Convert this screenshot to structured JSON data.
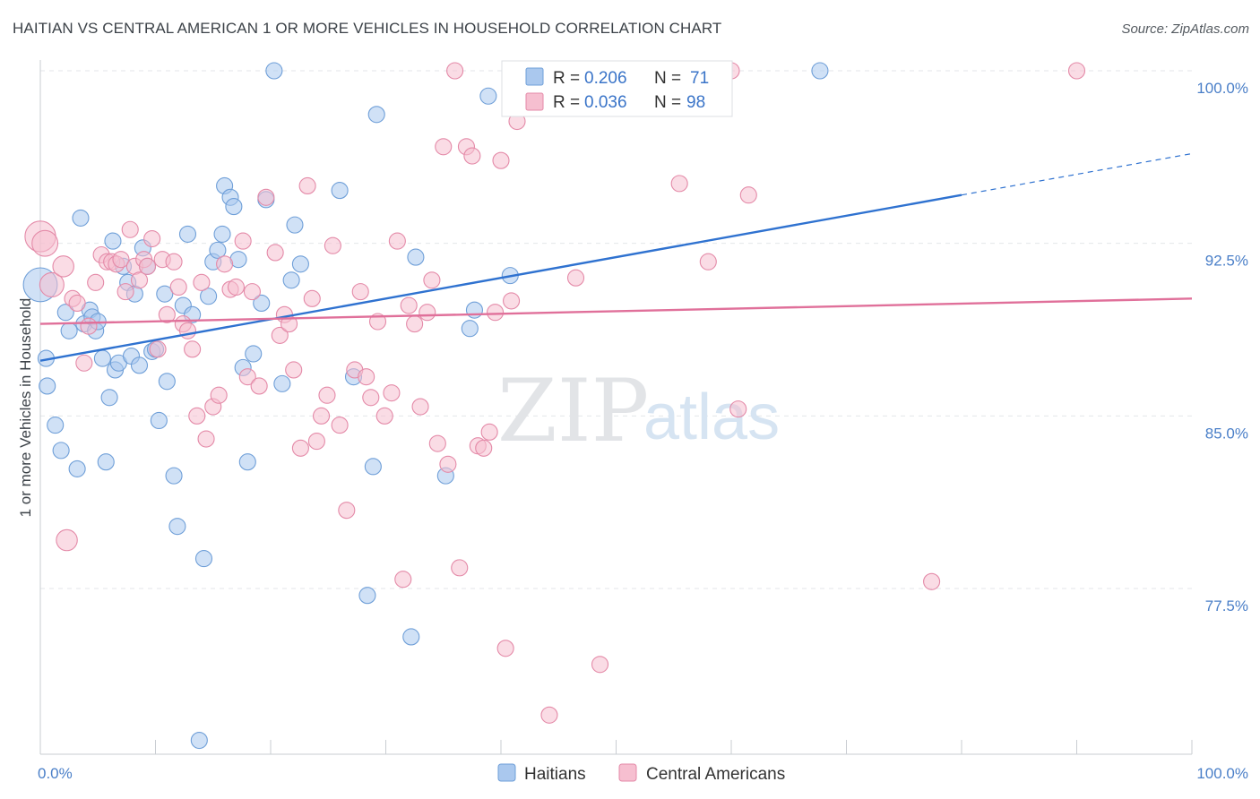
{
  "title": "HAITIAN VS CENTRAL AMERICAN 1 OR MORE VEHICLES IN HOUSEHOLD CORRELATION CHART",
  "source": "Source: ZipAtlas.com",
  "watermark": {
    "zip": "ZIP",
    "atlas": "atlas"
  },
  "colors": {
    "blue_fill": "#aac8ee",
    "blue_stroke": "#6f9fd8",
    "blue_line": "#2f72d0",
    "pink_fill": "#f6bfd0",
    "pink_stroke": "#e48aa8",
    "pink_line": "#e0709a",
    "grid": "#e3e6ea",
    "axis_text": "#4a7fc8"
  },
  "legend": {
    "rows": [
      {
        "r_label": "R =",
        "r_value": "0.206",
        "n_label": "N =",
        "n_value": "71",
        "series": "haitians"
      },
      {
        "r_label": "R =",
        "r_value": "0.036",
        "n_label": "N =",
        "n_value": "98",
        "series": "central_americans"
      }
    ]
  },
  "chart_data": {
    "type": "scatter",
    "title": "HAITIAN VS CENTRAL AMERICAN 1 OR MORE VEHICLES IN HOUSEHOLD CORRELATION CHART",
    "xlabel": "",
    "ylabel": "1 or more Vehicles in Household",
    "xlim": [
      0,
      100
    ],
    "ylim": [
      71.0,
      100.8
    ],
    "x_tick_labels": [
      "0.0%",
      "100.0%"
    ],
    "y_ticks": [
      100.0,
      92.5,
      85.0,
      77.5
    ],
    "y_tick_labels": [
      "100.0%",
      "92.5%",
      "85.0%",
      "77.5%"
    ],
    "grid": true,
    "legend_position": "top-center",
    "series": [
      {
        "name": "Haitians",
        "key": "haitians",
        "trend": {
          "x": [
            0,
            80
          ],
          "y": [
            87.4,
            94.6
          ],
          "dashed_to": [
            100,
            96.4
          ]
        },
        "points": [
          [
            0.0,
            90.7,
            2.1
          ],
          [
            0.5,
            87.5,
            1
          ],
          [
            0.6,
            86.3,
            1
          ],
          [
            1.3,
            84.6,
            1
          ],
          [
            1.8,
            83.5,
            1
          ],
          [
            2.2,
            89.5,
            1
          ],
          [
            2.5,
            88.7,
            1
          ],
          [
            3.2,
            82.7,
            1
          ],
          [
            3.5,
            93.6,
            1
          ],
          [
            3.8,
            89.0,
            1
          ],
          [
            4.3,
            89.6,
            1
          ],
          [
            4.5,
            89.3,
            1
          ],
          [
            4.8,
            88.7,
            1
          ],
          [
            5.0,
            89.1,
            1
          ],
          [
            5.4,
            87.5,
            1
          ],
          [
            5.7,
            83.0,
            1
          ],
          [
            6.0,
            85.8,
            1
          ],
          [
            6.3,
            92.6,
            1
          ],
          [
            6.5,
            87.0,
            1
          ],
          [
            6.8,
            87.3,
            1
          ],
          [
            7.2,
            91.5,
            1
          ],
          [
            7.6,
            90.8,
            1
          ],
          [
            7.9,
            87.6,
            1
          ],
          [
            8.2,
            90.3,
            1
          ],
          [
            8.6,
            87.2,
            1
          ],
          [
            8.9,
            92.3,
            1
          ],
          [
            9.3,
            91.5,
            1
          ],
          [
            9.7,
            87.8,
            1
          ],
          [
            10.0,
            87.9,
            1
          ],
          [
            10.3,
            84.8,
            1
          ],
          [
            10.8,
            90.3,
            1
          ],
          [
            11.0,
            86.5,
            1
          ],
          [
            11.6,
            82.4,
            1
          ],
          [
            11.9,
            80.2,
            1
          ],
          [
            12.4,
            89.8,
            1
          ],
          [
            12.8,
            92.9,
            1
          ],
          [
            13.2,
            89.4,
            1
          ],
          [
            13.8,
            70.9,
            1
          ],
          [
            14.2,
            78.8,
            1
          ],
          [
            14.6,
            90.2,
            1
          ],
          [
            15.0,
            91.7,
            1
          ],
          [
            15.4,
            92.2,
            1
          ],
          [
            15.8,
            92.9,
            1
          ],
          [
            16.0,
            95.0,
            1
          ],
          [
            16.5,
            94.5,
            1
          ],
          [
            16.8,
            94.1,
            1
          ],
          [
            17.2,
            91.8,
            1
          ],
          [
            17.6,
            87.1,
            1
          ],
          [
            18.0,
            83.0,
            1
          ],
          [
            18.5,
            87.7,
            1
          ],
          [
            19.2,
            89.9,
            1
          ],
          [
            19.6,
            94.4,
            1
          ],
          [
            20.3,
            100.0,
            1
          ],
          [
            21.0,
            86.4,
            1
          ],
          [
            21.8,
            90.9,
            1
          ],
          [
            22.1,
            93.3,
            1
          ],
          [
            22.6,
            91.6,
            1
          ],
          [
            26.0,
            94.8,
            1
          ],
          [
            27.2,
            86.7,
            1
          ],
          [
            28.4,
            77.2,
            1
          ],
          [
            28.9,
            82.8,
            1
          ],
          [
            29.2,
            98.1,
            1
          ],
          [
            32.2,
            75.4,
            1
          ],
          [
            32.6,
            91.9,
            1
          ],
          [
            35.2,
            82.4,
            1
          ],
          [
            37.3,
            88.8,
            1
          ],
          [
            37.7,
            89.6,
            1
          ],
          [
            38.9,
            98.9,
            1
          ],
          [
            40.8,
            91.1,
            1
          ],
          [
            67.7,
            100.0,
            1
          ],
          [
            80.0,
            89.9,
            0
          ]
        ]
      },
      {
        "name": "Central Americans",
        "key": "central_americans",
        "trend": {
          "x": [
            0,
            100
          ],
          "y": [
            89.0,
            90.1
          ]
        },
        "points": [
          [
            0.0,
            92.8,
            1.9
          ],
          [
            0.4,
            92.5,
            1.6
          ],
          [
            1.0,
            90.7,
            1.5
          ],
          [
            2.0,
            91.5,
            1.3
          ],
          [
            2.3,
            79.6,
            1.3
          ],
          [
            2.8,
            90.1,
            1
          ],
          [
            3.2,
            89.9,
            1
          ],
          [
            3.8,
            87.3,
            1
          ],
          [
            4.2,
            88.9,
            1
          ],
          [
            4.8,
            90.8,
            1
          ],
          [
            5.3,
            92.0,
            1
          ],
          [
            5.8,
            91.7,
            1
          ],
          [
            6.2,
            91.7,
            1
          ],
          [
            6.6,
            91.6,
            1
          ],
          [
            7.0,
            91.8,
            1
          ],
          [
            7.4,
            90.4,
            1
          ],
          [
            7.8,
            93.1,
            1
          ],
          [
            8.2,
            91.5,
            1
          ],
          [
            8.6,
            90.9,
            1
          ],
          [
            9.0,
            91.8,
            1
          ],
          [
            9.3,
            91.5,
            1
          ],
          [
            9.7,
            92.7,
            1
          ],
          [
            10.2,
            87.9,
            1
          ],
          [
            10.6,
            91.8,
            1
          ],
          [
            11.0,
            89.4,
            1
          ],
          [
            11.6,
            91.7,
            1
          ],
          [
            12.0,
            90.6,
            1
          ],
          [
            12.4,
            89.0,
            1
          ],
          [
            12.8,
            88.7,
            1
          ],
          [
            13.2,
            87.9,
            1
          ],
          [
            13.6,
            85.0,
            1
          ],
          [
            14.0,
            90.8,
            1
          ],
          [
            14.4,
            84.0,
            1
          ],
          [
            15.0,
            85.4,
            1
          ],
          [
            15.5,
            85.9,
            1
          ],
          [
            16.0,
            91.6,
            1
          ],
          [
            16.5,
            90.5,
            1
          ],
          [
            17.0,
            90.6,
            1
          ],
          [
            17.6,
            92.6,
            1
          ],
          [
            18.0,
            86.7,
            1
          ],
          [
            18.4,
            90.4,
            1
          ],
          [
            19.0,
            86.3,
            1
          ],
          [
            19.6,
            94.5,
            1
          ],
          [
            20.4,
            92.1,
            1
          ],
          [
            20.8,
            88.5,
            1
          ],
          [
            21.2,
            89.4,
            1
          ],
          [
            21.6,
            89.0,
            1
          ],
          [
            22.0,
            87.0,
            1
          ],
          [
            22.6,
            83.6,
            1
          ],
          [
            23.2,
            95.0,
            1
          ],
          [
            23.6,
            90.1,
            1
          ],
          [
            24.0,
            83.9,
            1
          ],
          [
            24.4,
            85.0,
            1
          ],
          [
            24.9,
            85.9,
            1
          ],
          [
            25.4,
            92.4,
            1
          ],
          [
            26.0,
            84.6,
            1
          ],
          [
            26.6,
            80.9,
            1
          ],
          [
            27.3,
            87.0,
            1
          ],
          [
            27.8,
            90.4,
            1
          ],
          [
            28.3,
            86.7,
            1
          ],
          [
            28.7,
            85.8,
            1
          ],
          [
            29.3,
            89.1,
            1
          ],
          [
            29.9,
            85.0,
            1
          ],
          [
            30.5,
            86.0,
            1
          ],
          [
            31.0,
            92.6,
            1
          ],
          [
            31.5,
            77.9,
            1
          ],
          [
            32.0,
            89.8,
            1
          ],
          [
            32.5,
            89.0,
            1
          ],
          [
            33.0,
            85.4,
            1
          ],
          [
            33.6,
            89.5,
            1
          ],
          [
            34.0,
            90.9,
            1
          ],
          [
            34.5,
            83.8,
            1
          ],
          [
            35.0,
            96.7,
            1
          ],
          [
            35.4,
            82.9,
            1
          ],
          [
            36.0,
            100.0,
            1
          ],
          [
            36.4,
            78.4,
            1
          ],
          [
            37.0,
            96.7,
            1
          ],
          [
            37.5,
            96.3,
            1
          ],
          [
            38.0,
            83.7,
            1
          ],
          [
            38.5,
            83.6,
            1
          ],
          [
            39.0,
            84.3,
            1
          ],
          [
            39.5,
            89.5,
            1
          ],
          [
            40.0,
            96.1,
            1
          ],
          [
            40.4,
            74.9,
            1
          ],
          [
            40.9,
            90.0,
            1
          ],
          [
            41.4,
            97.8,
            1
          ],
          [
            44.2,
            72.0,
            1
          ],
          [
            46.5,
            91.0,
            1
          ],
          [
            46.8,
            100.0,
            1
          ],
          [
            48.6,
            74.2,
            1
          ],
          [
            52.5,
            100.0,
            1
          ],
          [
            55.5,
            95.1,
            1
          ],
          [
            58.0,
            91.7,
            1
          ],
          [
            60.0,
            100.0,
            1
          ],
          [
            60.6,
            85.3,
            1
          ],
          [
            61.5,
            94.6,
            1
          ],
          [
            77.4,
            77.8,
            1
          ],
          [
            90.0,
            100.0,
            1
          ]
        ]
      }
    ]
  },
  "bottom_legend": {
    "items": [
      {
        "label": "Haitians",
        "series": "haitians"
      },
      {
        "label": "Central Americans",
        "series": "central_americans"
      }
    ]
  }
}
